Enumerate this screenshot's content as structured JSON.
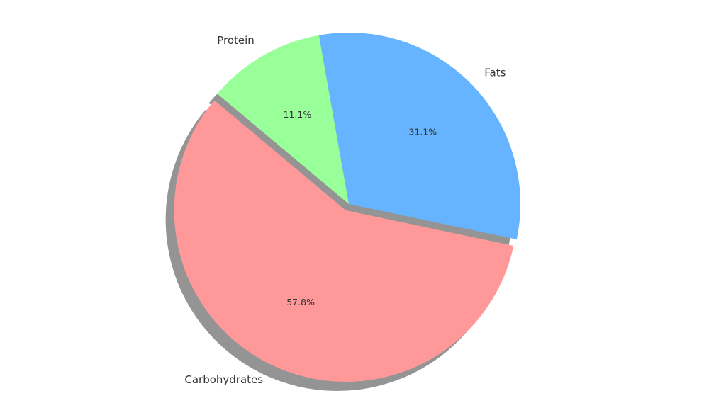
{
  "chart_data": {
    "type": "pie",
    "title": "",
    "shadow": true,
    "slices": [
      {
        "label": "Carbohydrates",
        "value": 57.8,
        "pct_label": "57.8%",
        "color": "#ff9999",
        "exploded": true
      },
      {
        "label": "Fats",
        "value": 31.1,
        "pct_label": "31.1%",
        "color": "#66b3ff",
        "exploded": false
      },
      {
        "label": "Protein",
        "value": 11.1,
        "pct_label": "11.1%",
        "color": "#99ff99",
        "exploded": false
      }
    ]
  }
}
